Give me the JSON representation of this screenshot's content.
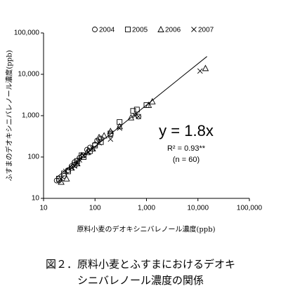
{
  "chart_data": {
    "type": "scatter",
    "xlabel": "原料小麦のデオキシニバレノール濃度(ppb)",
    "ylabel": "ふすまのデオキシニバレノール濃度(ppb)",
    "caption": [
      "図２．原料小麦とふすまにおけるデオキ",
      "シニバレノール濃度の関係"
    ],
    "annotations": [
      "y = 1.8x",
      "R² = 0.93**",
      "(n = 60)"
    ],
    "xlog": true,
    "ylog": true,
    "xlim": [
      10,
      100000
    ],
    "ylim": [
      10,
      100000
    ],
    "xticks": [
      10,
      100,
      {
        "value": 1000,
        "label": "1,000"
      },
      {
        "value": 10000,
        "label": "10,000"
      },
      {
        "value": 100000,
        "label": "100,000"
      }
    ],
    "yticks": [
      10,
      100,
      {
        "value": 1000,
        "label": "1,000"
      },
      {
        "value": 10000,
        "label": "10,000"
      },
      {
        "value": 100000,
        "label": "100,000"
      }
    ],
    "trendline": {
      "slope": 1.8,
      "x": [
        18,
        15000
      ]
    },
    "series": [
      {
        "name": "2004",
        "marker": "circle",
        "color": "#000",
        "x": [
          18,
          20,
          25,
          30,
          35,
          40,
          50,
          60,
          70,
          80,
          100,
          110,
          130,
          200,
          700
        ],
        "values": [
          27,
          27,
          35,
          48,
          60,
          75,
          95,
          110,
          150,
          170,
          200,
          250,
          280,
          350,
          950
        ]
      },
      {
        "name": "2005",
        "marker": "square",
        "color": "#000",
        "x": [
          20,
          25,
          30,
          40,
          45,
          55,
          60,
          80,
          100,
          130,
          200,
          300,
          550,
          650,
          1000
        ],
        "values": [
          30,
          40,
          45,
          65,
          80,
          110,
          100,
          140,
          190,
          230,
          370,
          700,
          1300,
          1400,
          1800
        ]
      },
      {
        "name": "2006",
        "marker": "triangle",
        "color": "#000",
        "x": [
          22,
          28,
          35,
          45,
          55,
          70,
          90,
          120,
          150,
          200,
          300,
          500,
          1100,
          1300,
          14000
        ],
        "values": [
          25,
          30,
          55,
          70,
          110,
          130,
          160,
          300,
          330,
          420,
          550,
          900,
          1800,
          2200,
          14000
        ]
      },
      {
        "name": "2007",
        "marker": "x",
        "color": "#000",
        "x": [
          22,
          27,
          35,
          40,
          45,
          50,
          60,
          75,
          90,
          120,
          200,
          300,
          600,
          700,
          11000
        ],
        "values": [
          30,
          45,
          55,
          60,
          70,
          85,
          110,
          130,
          160,
          220,
          270,
          500,
          1000,
          950,
          12000
        ]
      }
    ]
  }
}
